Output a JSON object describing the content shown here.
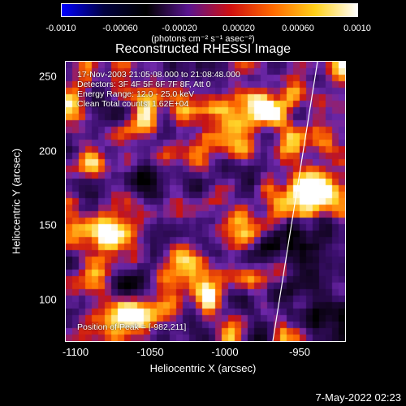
{
  "colorbar": {
    "ticks": [
      "-0.0010",
      "-0.00060",
      "-0.00020",
      "0.00020",
      "0.00060",
      "0.0010"
    ],
    "unit": "(photons cm⁻² s⁻¹ asec⁻²)",
    "colors": [
      "#0000ff",
      "#000040",
      "#000000",
      "#5a1590",
      "#d01010",
      "#ff6a00",
      "#ffd21a",
      "#ffffff"
    ]
  },
  "title": "Reconstructed RHESSI Image",
  "info": {
    "time_range": "17-Nov-2003 21:05:08.000 to 21:08:48.000",
    "detectors": "Detectors: 3F 4F 5F 6F 7F 8F, Att 0",
    "energy": "Energy Range: 12.0 - 25.0 keV",
    "clean": "Clean     Total counts: 1.62E+04",
    "peak": "Position of Peak = [-982,211]"
  },
  "axes": {
    "xlabel": "Heliocentric X (arcsec)",
    "ylabel": "Heliocentric Y (arcsec)",
    "xticks": [
      "-1100",
      "-1050",
      "-1000",
      "-950"
    ],
    "yticks": [
      "250",
      "200",
      "150",
      "100"
    ]
  },
  "footer_date": "7-May-2022 02:23"
}
